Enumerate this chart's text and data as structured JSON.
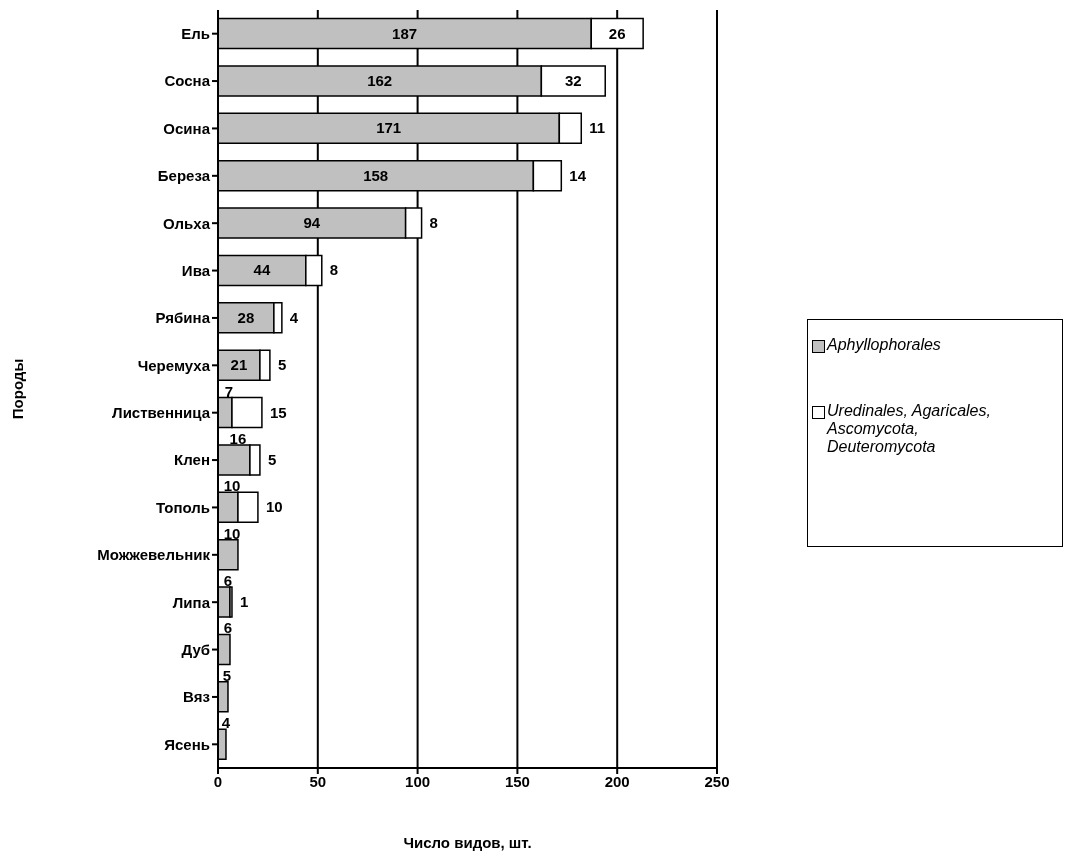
{
  "chart_data": {
    "type": "bar",
    "orientation": "horizontal",
    "stacked": true,
    "xlabel": "Число видов, шт.",
    "ylabel": "Породы",
    "categories": [
      "Ель",
      "Сосна",
      "Осина",
      "Береза",
      "Ольха",
      "Ива",
      "Рябина",
      "Черемуха",
      "Лиственница",
      "Клен",
      "Тополь",
      "Можжевельник",
      "Липа",
      "Дуб",
      "Вяз",
      "Ясень"
    ],
    "series": [
      {
        "name": "Aphyllophorales",
        "color": "#c0c0c0",
        "values": [
          187,
          162,
          171,
          158,
          94,
          44,
          28,
          21,
          7,
          16,
          10,
          10,
          6,
          6,
          5,
          4
        ]
      },
      {
        "name": "Uredinales, Agaricales, Ascomycota, Deuteromycota",
        "color": "#ffffff",
        "values": [
          26,
          32,
          11,
          14,
          8,
          8,
          4,
          5,
          15,
          5,
          10,
          null,
          1,
          null,
          null,
          null
        ]
      }
    ],
    "xlim": [
      0,
      250
    ],
    "xticks": [
      0,
      50,
      100,
      150,
      200,
      250
    ],
    "grid": "x",
    "legend": "right",
    "data_labels": true
  }
}
